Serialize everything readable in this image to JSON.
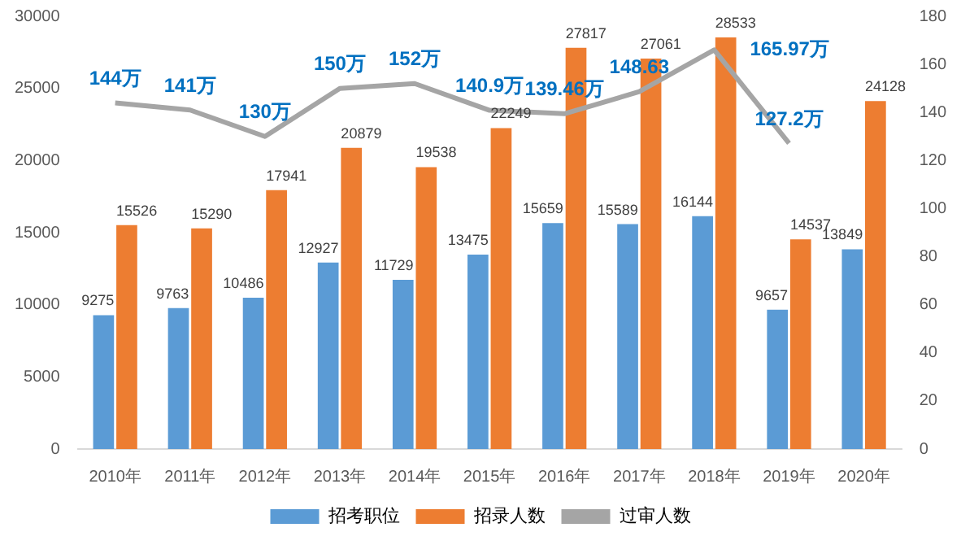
{
  "chart_data": {
    "type": "bar",
    "categories": [
      "2010年",
      "2011年",
      "2012年",
      "2013年",
      "2014年",
      "2015年",
      "2016年",
      "2017年",
      "2018年",
      "2019年",
      "2020年"
    ],
    "series": [
      {
        "name": "招考职位",
        "color": "#5b9bd5",
        "values": [
          9275,
          9763,
          10486,
          12927,
          11729,
          13475,
          15659,
          15589,
          16144,
          9657,
          13849
        ]
      },
      {
        "name": "招录人数",
        "color": "#ed7d31",
        "values": [
          15526,
          15290,
          17941,
          20879,
          19538,
          22249,
          27817,
          27061,
          28533,
          14537,
          24128
        ]
      },
      {
        "name": "过审人数",
        "type": "line",
        "axis": "y2",
        "color": "#a5a5a5",
        "marker": "none",
        "values": [
          144,
          141,
          130,
          150,
          152,
          140.9,
          139.46,
          148.63,
          165.97,
          127.2,
          null
        ],
        "value_labels": [
          "144万",
          "141万",
          "130万",
          "150万",
          "152万",
          "140.9万",
          "139.46万",
          "148.63",
          "165.97万",
          "127.2万",
          null
        ]
      }
    ],
    "data_labels": true,
    "ylim": [
      0,
      30000
    ],
    "yticks": [
      0,
      5000,
      10000,
      15000,
      20000,
      25000,
      30000
    ],
    "y2lim": [
      0,
      180
    ],
    "y2ticks": [
      0,
      20,
      40,
      60,
      80,
      100,
      120,
      140,
      160,
      180
    ],
    "grid": false,
    "legend": "bottom"
  }
}
